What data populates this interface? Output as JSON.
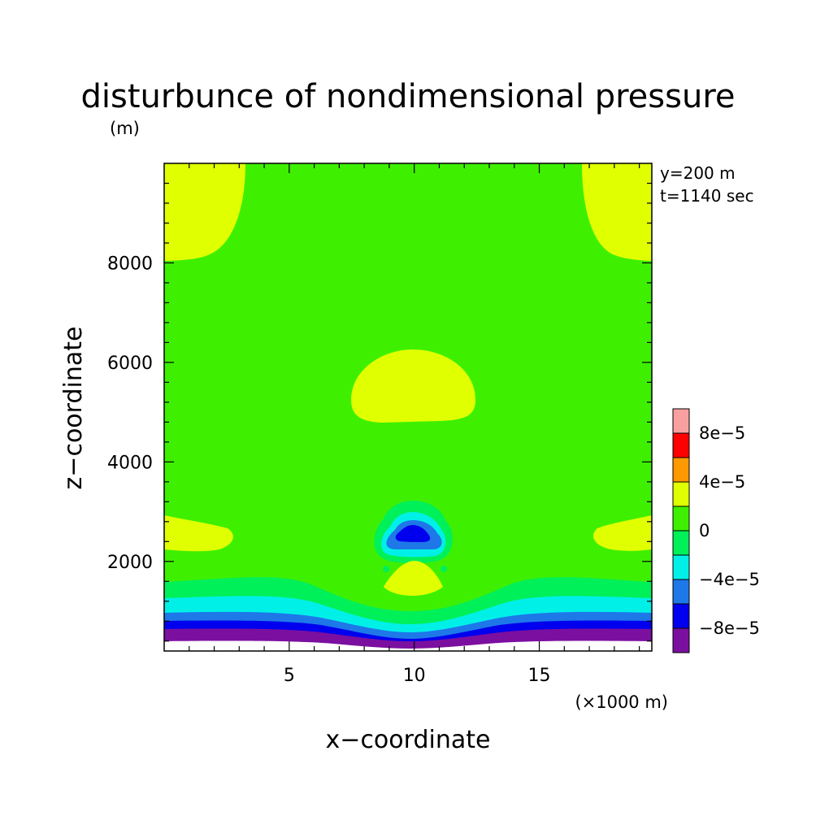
{
  "chart_data": {
    "type": "heatmap",
    "subtype": "filled-contour",
    "title": "disturbunce of nondimensional pressure",
    "units": "(m)",
    "info": [
      "y=200 m",
      "t=1140 sec"
    ],
    "xlabel": "x−coordinate",
    "ylabel": "z−coordinate",
    "x_unit_note": "(×1000 m)",
    "xlim": [
      0,
      19.5
    ],
    "ylim": [
      200,
      10000
    ],
    "x_ticks": [
      5,
      10,
      15
    ],
    "x_tick_labels": [
      "5",
      "10",
      "15"
    ],
    "y_ticks": [
      2000,
      4000,
      6000,
      8000
    ],
    "y_tick_labels": [
      "2000",
      "4000",
      "6000",
      "8000"
    ],
    "colorbar": {
      "levels": [
        -0.0001,
        -8e-05,
        -6e-05,
        -4e-05,
        -2e-05,
        0,
        2e-05,
        4e-05,
        6e-05,
        8e-05,
        0.0001
      ],
      "colors": [
        "#7b0fa0",
        "#0000ee",
        "#1e78e8",
        "#00f0e8",
        "#00f05a",
        "#3ef000",
        "#e0ff00",
        "#ff9900",
        "#ff0000",
        "#f8a0a0"
      ],
      "labels": [
        {
          "value": -8e-05,
          "text": "−8e−5"
        },
        {
          "value": -4e-05,
          "text": "−4e−5"
        },
        {
          "value": 0,
          "text": "0"
        },
        {
          "value": 4e-05,
          "text": "4e−5"
        },
        {
          "value": 8e-05,
          "text": "8e−5"
        }
      ]
    },
    "background_level_color": "#3ef000",
    "regions": [
      {
        "name": "upper-left positive",
        "value_range": [
          2e-05,
          4e-05
        ],
        "x_range": [
          0,
          3.3
        ],
        "z_range": [
          8000,
          10000
        ]
      },
      {
        "name": "upper-right positive",
        "value_range": [
          2e-05,
          4e-05
        ],
        "x_range": [
          16.4,
          19.5
        ],
        "z_range": [
          8000,
          10000
        ]
      },
      {
        "name": "mid positive dome",
        "value_range": [
          2e-05,
          4e-05
        ],
        "x_range": [
          7.6,
          12.6
        ],
        "z_range": [
          4700,
          6200
        ]
      },
      {
        "name": "left positive lobe",
        "value_range": [
          2e-05,
          4e-05
        ],
        "x_range": [
          0,
          2.8
        ],
        "z_range": [
          1950,
          2850
        ]
      },
      {
        "name": "right positive lobe",
        "value_range": [
          2e-05,
          4e-05
        ],
        "x_range": [
          17.1,
          19.5
        ],
        "z_range": [
          1950,
          2850
        ]
      },
      {
        "name": "positive lens",
        "value_range": [
          2e-05,
          4e-05
        ],
        "x_range": [
          9.1,
          11.4
        ],
        "z_range": [
          1100,
          1900
        ]
      },
      {
        "name": "negative core",
        "value_range": [
          -8e-05,
          -4e-05
        ],
        "x_range": [
          8.6,
          11.6
        ],
        "z_range": [
          2100,
          2700
        ]
      }
    ],
    "bottom_bands": [
      {
        "value_range": [
          -2e-05,
          0
        ],
        "z_top_edge": 1600,
        "z_top_center": 1100
      },
      {
        "value_range": [
          -4e-05,
          -2e-05
        ],
        "z_top_edge": 1150,
        "z_top_center": 750
      },
      {
        "value_range": [
          -6e-05,
          -4e-05
        ],
        "z_top_edge": 850,
        "z_top_center": 550
      },
      {
        "value_range": [
          -8e-05,
          -6e-05
        ],
        "z_top_edge": 650,
        "z_top_center": 420
      },
      {
        "value_range": [
          -0.0001,
          -8e-05
        ],
        "z_top_edge": 480,
        "z_top_center": 280
      },
      {
        "value_range": "below -1e-4 (unfilled)",
        "z_top_edge": 260,
        "z_top_center": 150
      }
    ]
  }
}
